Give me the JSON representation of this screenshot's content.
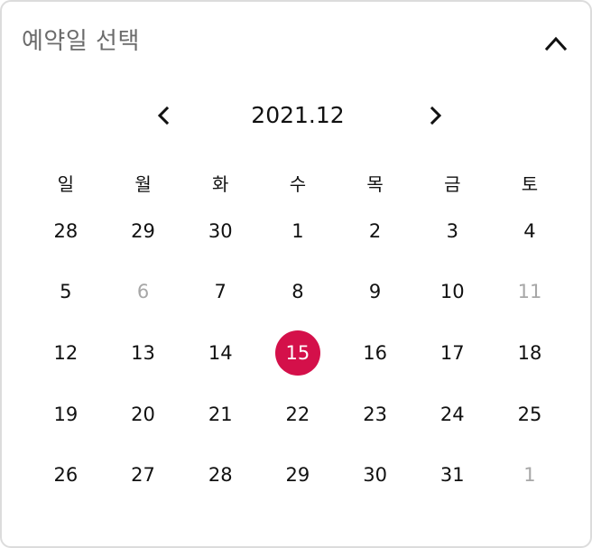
{
  "panel": {
    "title": "예약일 선택",
    "collapse_icon": "chevron-up-icon"
  },
  "calendar": {
    "month_label": "2021.12",
    "prev_icon": "chevron-left-icon",
    "next_icon": "chevron-right-icon",
    "weekdays": [
      "일",
      "월",
      "화",
      "수",
      "목",
      "금",
      "토"
    ],
    "weeks": [
      [
        "28",
        "29",
        "30",
        "1",
        "2",
        "3",
        "4"
      ],
      [
        "5",
        "6",
        "7",
        "8",
        "9",
        "10",
        "11"
      ],
      [
        "12",
        "13",
        "14",
        "15",
        "16",
        "17",
        "18"
      ],
      [
        "19",
        "20",
        "21",
        "22",
        "23",
        "24",
        "25"
      ],
      [
        "26",
        "27",
        "28",
        "29",
        "30",
        "31",
        "1"
      ]
    ],
    "muted_dates": [
      [
        1,
        1
      ],
      [
        1,
        6
      ],
      [
        4,
        6
      ]
    ],
    "selected_date": [
      2,
      3
    ],
    "accent_color": "#d4104a",
    "muted_color": "#a7a7a7"
  }
}
